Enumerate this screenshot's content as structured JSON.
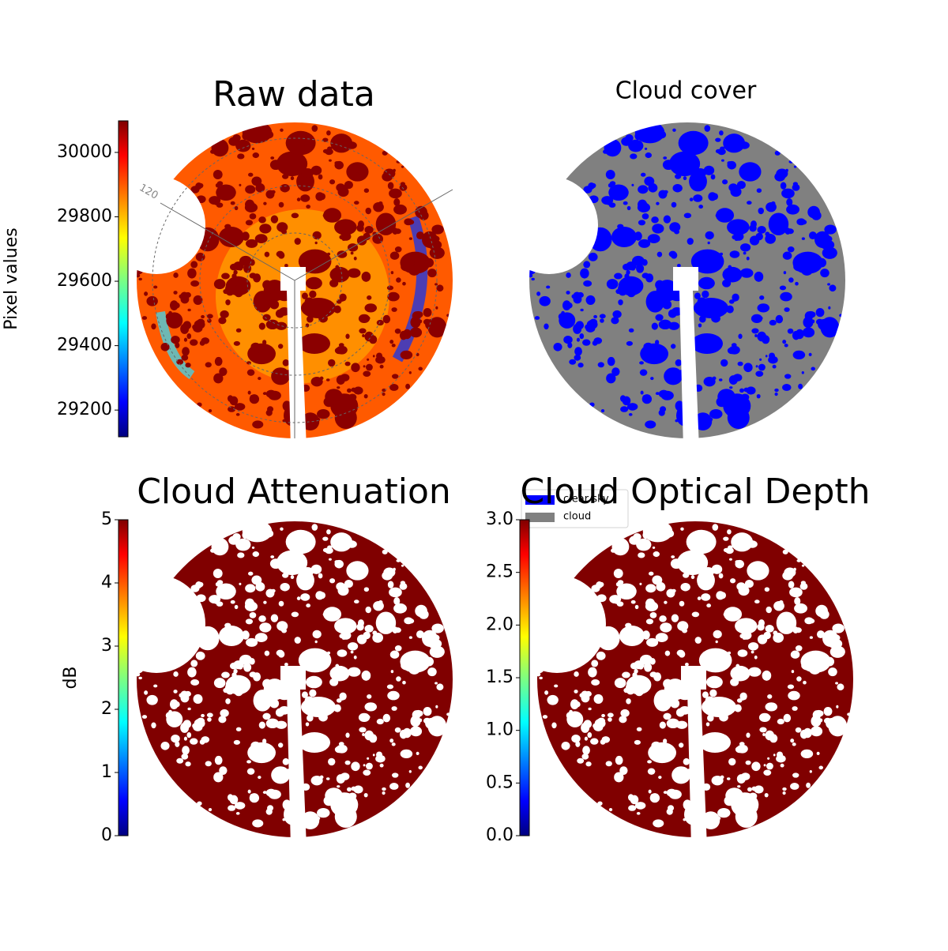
{
  "chart_data": [
    {
      "type": "image",
      "title": "Raw data",
      "colorbar_label": "Pixel values",
      "colormap": "jet",
      "ylim": [
        29117,
        30098
      ],
      "yticks": [
        29200,
        29400,
        29600,
        29800,
        30000
      ],
      "annotations": [
        "120"
      ]
    },
    {
      "type": "image",
      "title": "Cloud cover",
      "series": [
        {
          "name": "clear sky",
          "color": "#0000ff"
        },
        {
          "name": "cloud",
          "color": "#808080"
        }
      ]
    },
    {
      "type": "image",
      "title": "Cloud Attenuation",
      "colorbar_label": "dB",
      "colormap": "jet",
      "color": "#800000",
      "ylim": [
        0,
        5
      ],
      "yticks": [
        0,
        1,
        2,
        3,
        4,
        5
      ]
    },
    {
      "type": "image",
      "title": "Cloud Optical Depth",
      "colormap": "jet",
      "color": "#800000",
      "ylim": [
        0,
        3
      ],
      "yticks": [
        {
          "value": 0,
          "label": "0.0"
        },
        0.5,
        {
          "value": 1,
          "label": "1.0"
        },
        1.5,
        {
          "value": 2,
          "label": "2.0"
        },
        2.5,
        {
          "value": 3,
          "label": "3.0"
        }
      ]
    }
  ]
}
